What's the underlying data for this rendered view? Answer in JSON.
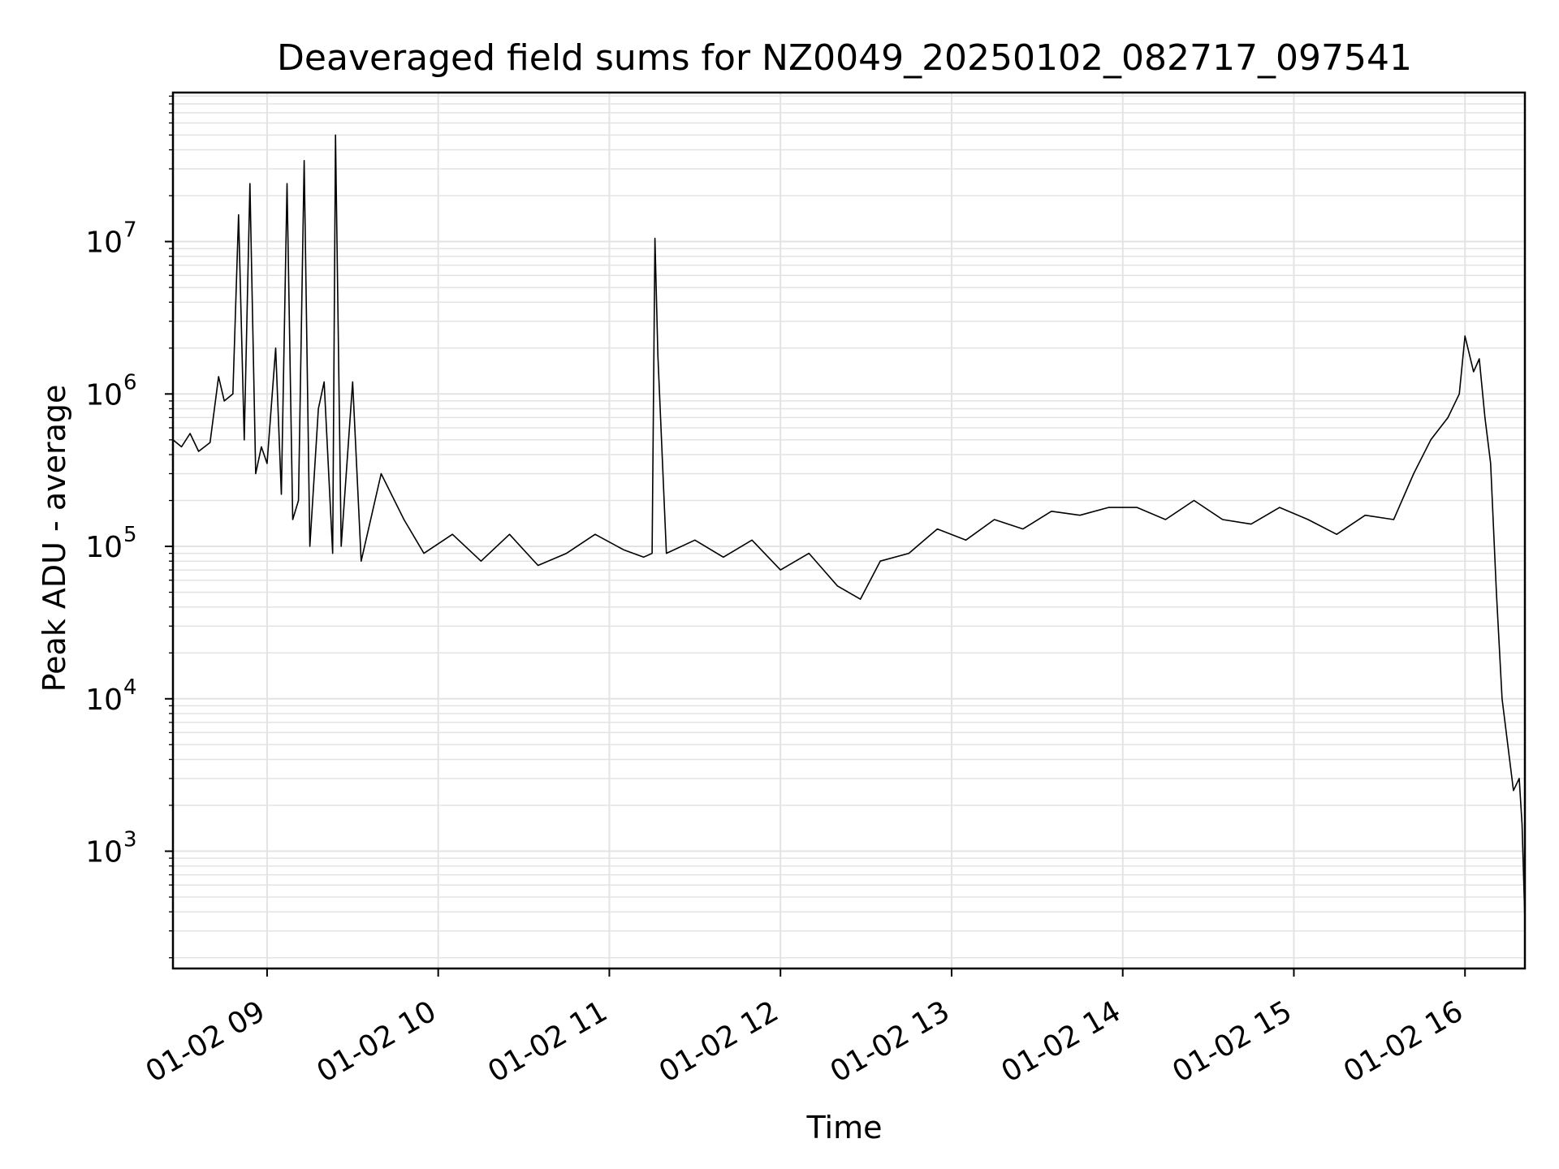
{
  "chart_data": {
    "type": "line",
    "title": "Deaveraged field sums for NZ0049_20250102_082717_097541",
    "xlabel": "Time",
    "ylabel": "Peak ADU - average",
    "yscale": "log",
    "grid": true,
    "line_color": "#000000",
    "x_tick_labels": [
      "01-02 09",
      "01-02 10",
      "01-02 11",
      "01-02 12",
      "01-02 13",
      "01-02 14",
      "01-02 15",
      "01-02 16"
    ],
    "y_tick_labels": [
      {
        "base": "10",
        "exp": "3"
      },
      {
        "base": "10",
        "exp": "4"
      },
      {
        "base": "10",
        "exp": "5"
      },
      {
        "base": "10",
        "exp": "6"
      },
      {
        "base": "10",
        "exp": "7"
      }
    ],
    "xlim": [
      "2025-01-02 08:27",
      "2025-01-02 16:21"
    ],
    "ylim": [
      170,
      95000000
    ],
    "series": [
      {
        "x": [
          "2025-01-02 08:27",
          "2025-01-02 08:30",
          "2025-01-02 08:33",
          "2025-01-02 08:36",
          "2025-01-02 08:40",
          "2025-01-02 08:43",
          "2025-01-02 08:45",
          "2025-01-02 08:48",
          "2025-01-02 08:50",
          "2025-01-02 08:52",
          "2025-01-02 08:54",
          "2025-01-02 08:56",
          "2025-01-02 08:58",
          "2025-01-02 09:00",
          "2025-01-02 09:03",
          "2025-01-02 09:05",
          "2025-01-02 09:07",
          "2025-01-02 09:09",
          "2025-01-02 09:11",
          "2025-01-02 09:13",
          "2025-01-02 09:15",
          "2025-01-02 09:18",
          "2025-01-02 09:20",
          "2025-01-02 09:23",
          "2025-01-02 09:24",
          "2025-01-02 09:26",
          "2025-01-02 09:30",
          "2025-01-02 09:33",
          "2025-01-02 09:40",
          "2025-01-02 09:48",
          "2025-01-02 09:55",
          "2025-01-02 10:05",
          "2025-01-02 10:15",
          "2025-01-02 10:25",
          "2025-01-02 10:35",
          "2025-01-02 10:45",
          "2025-01-02 10:55",
          "2025-01-02 11:05",
          "2025-01-02 11:12",
          "2025-01-02 11:15",
          "2025-01-02 11:16",
          "2025-01-02 11:17",
          "2025-01-02 11:20",
          "2025-01-02 11:30",
          "2025-01-02 11:40",
          "2025-01-02 11:50",
          "2025-01-02 12:00",
          "2025-01-02 12:10",
          "2025-01-02 12:20",
          "2025-01-02 12:28",
          "2025-01-02 12:35",
          "2025-01-02 12:45",
          "2025-01-02 12:55",
          "2025-01-02 13:05",
          "2025-01-02 13:15",
          "2025-01-02 13:25",
          "2025-01-02 13:35",
          "2025-01-02 13:45",
          "2025-01-02 13:55",
          "2025-01-02 14:05",
          "2025-01-02 14:15",
          "2025-01-02 14:25",
          "2025-01-02 14:35",
          "2025-01-02 14:45",
          "2025-01-02 14:55",
          "2025-01-02 15:05",
          "2025-01-02 15:15",
          "2025-01-02 15:25",
          "2025-01-02 15:35",
          "2025-01-02 15:42",
          "2025-01-02 15:48",
          "2025-01-02 15:54",
          "2025-01-02 15:58",
          "2025-01-02 16:00",
          "2025-01-02 16:03",
          "2025-01-02 16:05",
          "2025-01-02 16:07",
          "2025-01-02 16:09",
          "2025-01-02 16:11",
          "2025-01-02 16:13",
          "2025-01-02 16:15",
          "2025-01-02 16:17",
          "2025-01-02 16:19",
          "2025-01-02 16:20",
          "2025-01-02 16:21"
        ],
        "y": [
          500000,
          450000,
          550000,
          420000,
          480000,
          1300000,
          900000,
          1000000,
          15000000,
          500000,
          24000000,
          300000,
          450000,
          350000,
          2000000,
          220000,
          24000000,
          150000,
          200000,
          34000000,
          100000,
          800000,
          1200000,
          90000,
          50000000,
          100000,
          1200000,
          80000,
          300000,
          150000,
          90000,
          120000,
          80000,
          120000,
          75000,
          90000,
          120000,
          95000,
          85000,
          90000,
          10500000,
          1800000,
          90000,
          110000,
          85000,
          110000,
          70000,
          90000,
          55000,
          45000,
          80000,
          90000,
          130000,
          110000,
          150000,
          130000,
          170000,
          160000,
          180000,
          180000,
          150000,
          200000,
          150000,
          140000,
          180000,
          150000,
          120000,
          160000,
          150000,
          300000,
          500000,
          700000,
          1000000,
          2400000,
          1400000,
          1700000,
          700000,
          350000,
          50000,
          10000,
          5000,
          2500,
          3000,
          1500,
          350
        ]
      }
    ]
  }
}
